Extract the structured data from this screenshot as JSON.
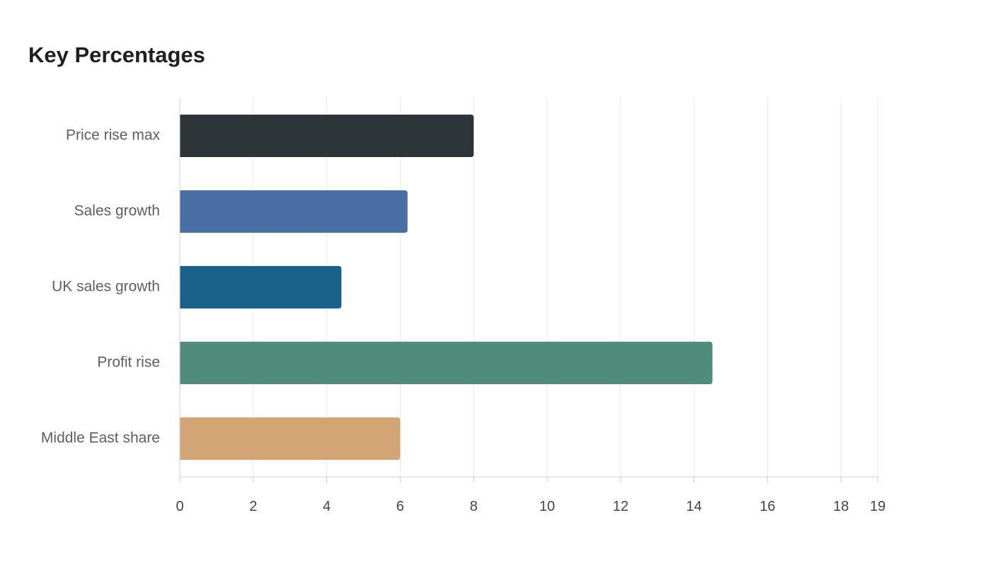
{
  "chart_data": {
    "type": "bar",
    "orientation": "horizontal",
    "title": "Key Percentages",
    "xlabel": "",
    "ylabel": "",
    "categories": [
      "Price rise max",
      "Sales growth",
      "UK sales growth",
      "Profit rise",
      "Middle East share"
    ],
    "values": [
      8,
      6.2,
      4.4,
      14.5,
      6
    ],
    "colors": [
      "#2d3538",
      "#4a6fa5",
      "#186188",
      "#4f8c7b",
      "#d4a574"
    ],
    "xlim": [
      0,
      19
    ],
    "xticks": [
      0,
      2,
      4,
      6,
      8,
      10,
      12,
      14,
      16,
      18,
      19
    ],
    "grid": true,
    "legend": "none"
  }
}
